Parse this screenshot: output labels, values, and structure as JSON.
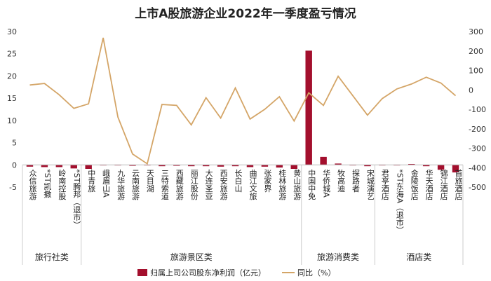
{
  "chart_data": {
    "type": "bar",
    "title": "上市A股旅游企业2022年一季度盈亏情况",
    "categories": [
      "众信旅游",
      "*ST凯撒",
      "岭南控股",
      "*ST腾邦（退市）",
      "中青旅",
      "峨眉山A",
      "九华旅游",
      "云南旅游",
      "天目湖",
      "三特索道",
      "西藏旅游",
      "丽江股份",
      "大连圣亚",
      "西安旅游",
      "长白山",
      "曲江文旅",
      "张家界",
      "桂林旅游",
      "黄山旅游",
      "中国中免",
      "华侨城A",
      "牧高迪",
      "探路者",
      "宋城演艺",
      "君亭酒店",
      "*ST东海A（退市）",
      "金陵饭店",
      "华天酒店",
      "锦江酒店",
      "首旅酒店"
    ],
    "groups": [
      {
        "name": "旅行社类",
        "count": 4
      },
      {
        "name": "旅游景区类",
        "count": 15
      },
      {
        "name": "旅游消费类",
        "count": 5
      },
      {
        "name": "酒店类",
        "count": 6
      }
    ],
    "series": [
      {
        "name": "归属上司公司股东净利润（亿元）",
        "type": "bar",
        "axis": "left",
        "color": "#a30f2d",
        "values": [
          -0.4,
          -0.5,
          -0.5,
          -0.8,
          -0.9,
          -0.1,
          -0.1,
          -0.2,
          -0.1,
          -0.3,
          -0.2,
          -0.3,
          -0.3,
          -0.4,
          -0.3,
          -0.5,
          -0.4,
          -0.6,
          -0.9,
          25.7,
          1.8,
          0.3,
          -0.1,
          -0.3,
          0.0,
          -0.1,
          0.2,
          -0.3,
          -1.1,
          -1.7
        ]
      },
      {
        "name": "同比（%）",
        "type": "line",
        "axis": "right",
        "color": "#d4a567",
        "values": [
          25,
          33,
          -25,
          -95,
          -72,
          268,
          -140,
          -330,
          -380,
          -75,
          -80,
          -180,
          -40,
          -145,
          10,
          -150,
          -100,
          -35,
          -160,
          -15,
          -80,
          70,
          -30,
          -130,
          -45,
          5,
          30,
          65,
          35,
          -30
        ]
      }
    ],
    "y_left": {
      "range": [
        -5,
        30
      ],
      "ticks": [
        -5,
        0,
        5,
        10,
        15,
        20,
        25,
        30
      ]
    },
    "y_right": {
      "range": [
        -500,
        300
      ],
      "ticks": [
        -500,
        -400,
        -300,
        -200,
        -100,
        0,
        100,
        200,
        300
      ]
    },
    "legend": [
      {
        "label": "归属上司公司股东净利润（亿元）",
        "color": "#a30f2d",
        "shape": "bar"
      },
      {
        "label": "同比（%）",
        "color": "#d4a567",
        "shape": "line"
      }
    ],
    "legend_position": "bottom"
  }
}
